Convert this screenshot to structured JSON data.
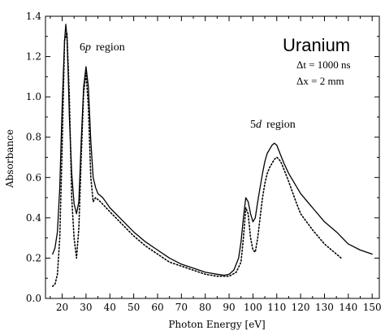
{
  "chart_data": {
    "type": "line",
    "title": "",
    "xlabel": "Photon Energy [eV]",
    "ylabel": "Absorbance",
    "xlim": [
      13,
      153
    ],
    "ylim": [
      0,
      1.4
    ],
    "xticks": [
      20,
      30,
      40,
      50,
      60,
      70,
      80,
      90,
      100,
      110,
      120,
      130,
      140,
      150
    ],
    "yticks": [
      0.0,
      0.2,
      0.4,
      0.6,
      0.8,
      1.0,
      1.2,
      1.4
    ],
    "grid": false,
    "annotations": {
      "element": "Uranium",
      "delta_t": "Δt = 1000 ns",
      "delta_x": "Δx = 2 mm",
      "region_6p_a": "6",
      "region_6p_b": "p",
      "region_6p_c": "region",
      "region_5d_a": "5",
      "region_5d_b": "d",
      "region_5d_c": "region"
    },
    "series": [
      {
        "style": "solid",
        "color": "#000000",
        "x": [
          16,
          17,
          18,
          19,
          20,
          21,
          21.5,
          22,
          22.5,
          23,
          24,
          25,
          26,
          27,
          28,
          29,
          30,
          31,
          32,
          33,
          34,
          35,
          37,
          40,
          45,
          50,
          55,
          60,
          65,
          70,
          75,
          80,
          85,
          88,
          90,
          92,
          94,
          95,
          96,
          97,
          98,
          99,
          100,
          101,
          102,
          103,
          104,
          105,
          106,
          107,
          108,
          109,
          110,
          111,
          112,
          113,
          115,
          117,
          120,
          125,
          130,
          135,
          140,
          145,
          150
        ],
        "y": [
          0.22,
          0.25,
          0.33,
          0.55,
          0.95,
          1.28,
          1.36,
          1.3,
          1.12,
          0.9,
          0.62,
          0.47,
          0.42,
          0.48,
          0.78,
          1.05,
          1.15,
          1.05,
          0.78,
          0.6,
          0.55,
          0.52,
          0.5,
          0.45,
          0.39,
          0.33,
          0.28,
          0.24,
          0.2,
          0.17,
          0.15,
          0.13,
          0.12,
          0.115,
          0.12,
          0.14,
          0.2,
          0.28,
          0.4,
          0.5,
          0.48,
          0.42,
          0.38,
          0.4,
          0.48,
          0.55,
          0.62,
          0.68,
          0.72,
          0.74,
          0.76,
          0.77,
          0.76,
          0.73,
          0.7,
          0.67,
          0.62,
          0.58,
          0.52,
          0.45,
          0.38,
          0.33,
          0.27,
          0.24,
          0.22
        ]
      },
      {
        "style": "dotted",
        "color": "#000000",
        "x": [
          16,
          17,
          18,
          19,
          20,
          21,
          22,
          23,
          24,
          25,
          26,
          27,
          28,
          29,
          30,
          31,
          32,
          33,
          34,
          36,
          40,
          45,
          50,
          55,
          60,
          65,
          70,
          75,
          80,
          85,
          90,
          93,
          95,
          96,
          97,
          98,
          99,
          100,
          101,
          102,
          103,
          104,
          105,
          106,
          107,
          108,
          109,
          110,
          111,
          112,
          113,
          115,
          118,
          120,
          125,
          130,
          135,
          137
        ],
        "y": [
          0.06,
          0.07,
          0.12,
          0.3,
          0.75,
          1.28,
          1.32,
          1.0,
          0.5,
          0.3,
          0.2,
          0.35,
          0.7,
          1.02,
          1.12,
          0.95,
          0.6,
          0.48,
          0.5,
          0.48,
          0.43,
          0.37,
          0.31,
          0.26,
          0.22,
          0.18,
          0.16,
          0.14,
          0.12,
          0.11,
          0.11,
          0.13,
          0.18,
          0.3,
          0.45,
          0.42,
          0.3,
          0.24,
          0.23,
          0.3,
          0.4,
          0.5,
          0.57,
          0.62,
          0.65,
          0.67,
          0.69,
          0.7,
          0.69,
          0.67,
          0.64,
          0.58,
          0.48,
          0.42,
          0.34,
          0.27,
          0.22,
          0.2
        ]
      }
    ]
  }
}
